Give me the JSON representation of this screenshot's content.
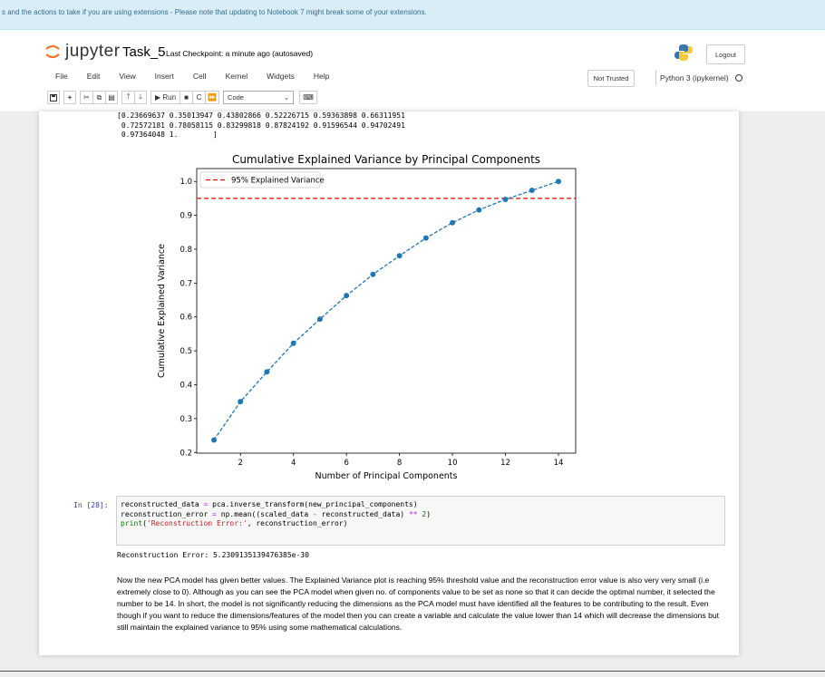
{
  "banner": {
    "text": "s and the actions to take if you are using extensions - Please note that updating to Notebook 7 might break some of your extensions."
  },
  "header": {
    "logo_text": "jupyter",
    "notebook_title": "Task_5",
    "checkpoint": "Last Checkpoint: a minute ago  (autosaved)",
    "logout_label": "Logout",
    "not_trusted_label": "Not Trusted",
    "kernel_label": "Python 3 (ipykernel)"
  },
  "menu": [
    "File",
    "Edit",
    "View",
    "Insert",
    "Cell",
    "Kernel",
    "Widgets",
    "Help"
  ],
  "toolbar": {
    "run_label": "Run",
    "cell_type": "Code"
  },
  "output": {
    "array_text": "[0.23669637 0.35013947 0.43802866 0.52226715 0.59363898 0.66311951\n 0.72572181 0.78058115 0.83299818 0.87824192 0.91596544 0.94702491\n 0.97364048 1.        ]"
  },
  "chart_data": {
    "type": "line",
    "title": "Cumulative Explained Variance by Principal Components",
    "xlabel": "Number of Principal Components",
    "ylabel": "Cumulative Explained Variance",
    "x": [
      1,
      2,
      3,
      4,
      5,
      6,
      7,
      8,
      9,
      10,
      11,
      12,
      13,
      14
    ],
    "y": [
      0.23669637,
      0.35013947,
      0.43802866,
      0.52226715,
      0.59363898,
      0.66311951,
      0.72572181,
      0.78058115,
      0.83299818,
      0.87824192,
      0.91596544,
      0.94702491,
      0.97364048,
      1.0
    ],
    "xlim": [
      0.35,
      14.65
    ],
    "ylim": [
      0.198,
      1.038
    ],
    "xticks": [
      "2",
      "4",
      "6",
      "8",
      "10",
      "12",
      "14"
    ],
    "yticks": [
      "0.2",
      "0.3",
      "0.4",
      "0.5",
      "0.6",
      "0.7",
      "0.8",
      "0.9",
      "1.0"
    ],
    "threshold": 0.95,
    "legend": [
      "95% Explained Variance"
    ],
    "legend_position": "top-left",
    "line_color": "#1f77b4",
    "threshold_color": "#ff0000"
  },
  "code_cell": {
    "prompt": "In [28]:",
    "line1_a": "reconstructed_data ",
    "line1_b": "=",
    "line1_c": " pca.inverse_transform(new_principal_components)",
    "line2_a": "reconstruction_error ",
    "line2_b": "=",
    "line2_c": " np.mean((scaled_data ",
    "line2_d": "-",
    "line2_e": " reconstructed_data) ",
    "line2_f": "**",
    "line2_g": " ",
    "line2_h": "2",
    "line2_i": ")",
    "line3_a": "print",
    "line3_b": "(",
    "line3_c": "'Reconstruction Error:'",
    "line3_d": ", reconstruction_error)"
  },
  "result": {
    "text": "Reconstruction Error: 5.2309135139476385e-30"
  },
  "markdown": {
    "text": "Now the new PCA model has given better values. The Explained Variance plot is reaching 95% threshold value and the reconstruction error value is also very very small (i.e extremely close to 0). Although as you can see the PCA model when given no. of components value to be set as none so that it can decide the optimal number, it selected the number to be 14. In short, the model is not significantly reducing the dimensions as the PCA model must have identified all the features to be contributing to the result. Even though if you want to reduce the dimensions/features of the model then you can create a variable and calculate the value lower than 14 which will decrease the dimensions but still maintain the explained variance to 95% using some mathematical calculations."
  }
}
